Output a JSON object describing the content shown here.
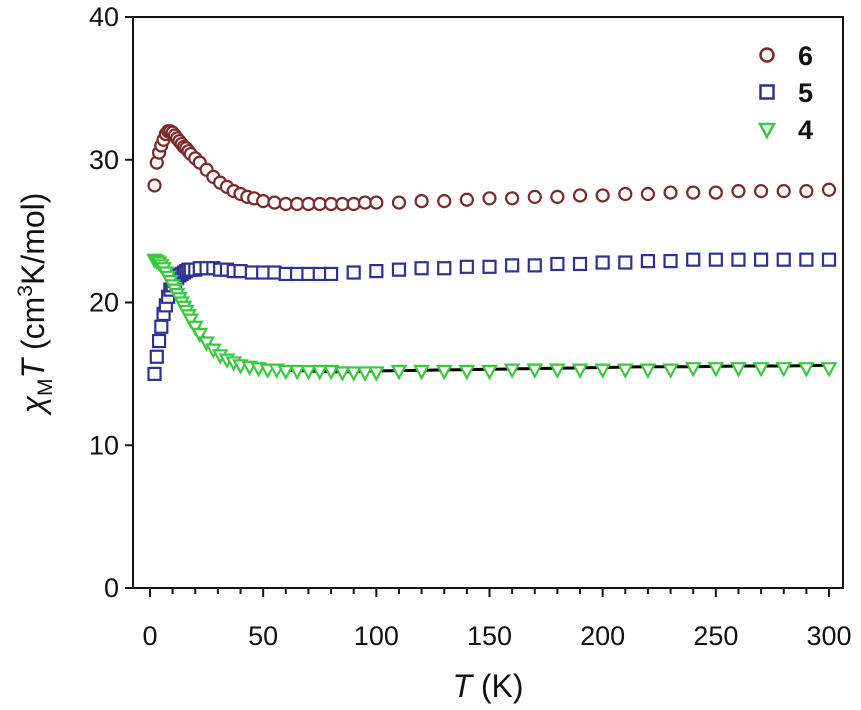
{
  "chart_data": {
    "type": "scatter",
    "xlabel": "T (K)",
    "ylabel": "χMT (cm3K/mol)",
    "xlabel_parts": {
      "var": "T",
      "unit": "(K)"
    },
    "ylabel_parts": {
      "chi": "χ",
      "sub": "M",
      "var": "T",
      "unit_pre": "(cm",
      "sup": "3",
      "unit_post": "K/mol)"
    },
    "xlim": [
      0,
      300
    ],
    "ylim": [
      0,
      40
    ],
    "xticks": [
      0,
      50,
      100,
      150,
      200,
      250,
      300
    ],
    "yticks": [
      0,
      10,
      20,
      30,
      40
    ],
    "grid": false,
    "legend_position": "top-right",
    "series": [
      {
        "name": "6",
        "marker": "circle",
        "color": "#7a2a2a",
        "x": [
          2,
          3,
          4,
          5,
          6,
          7,
          8,
          9,
          10,
          11,
          12,
          13,
          14,
          15,
          16,
          17,
          18,
          20,
          22,
          25,
          28,
          31,
          34,
          37,
          40,
          43,
          46,
          50,
          55,
          60,
          65,
          70,
          75,
          80,
          85,
          90,
          95,
          100,
          110,
          120,
          130,
          140,
          150,
          160,
          170,
          180,
          190,
          200,
          210,
          220,
          230,
          240,
          250,
          260,
          270,
          280,
          290,
          300
        ],
        "y": [
          28.2,
          29.8,
          30.5,
          31.0,
          31.4,
          31.8,
          32.0,
          32.0,
          31.9,
          31.7,
          31.5,
          31.3,
          31.1,
          30.9,
          30.8,
          30.6,
          30.4,
          30.1,
          29.8,
          29.3,
          28.8,
          28.4,
          28.1,
          27.8,
          27.6,
          27.4,
          27.3,
          27.1,
          27.0,
          26.9,
          26.9,
          26.9,
          26.9,
          26.9,
          26.9,
          26.9,
          27.0,
          27.0,
          27.0,
          27.1,
          27.1,
          27.2,
          27.3,
          27.3,
          27.4,
          27.4,
          27.5,
          27.5,
          27.6,
          27.6,
          27.7,
          27.7,
          27.7,
          27.8,
          27.8,
          27.8,
          27.8,
          27.9
        ]
      },
      {
        "name": "5",
        "marker": "square",
        "color": "#2e3192",
        "x": [
          2,
          3,
          4,
          5,
          6,
          7,
          8,
          9,
          10,
          11,
          12,
          13,
          14,
          15,
          16,
          17,
          18,
          20,
          22,
          25,
          28,
          31,
          34,
          37,
          40,
          45,
          50,
          55,
          60,
          65,
          70,
          75,
          80,
          90,
          100,
          110,
          120,
          130,
          140,
          150,
          160,
          170,
          180,
          190,
          200,
          210,
          220,
          230,
          240,
          250,
          260,
          270,
          280,
          290,
          300
        ],
        "y": [
          15.0,
          16.2,
          17.3,
          18.3,
          19.2,
          19.8,
          20.4,
          20.9,
          21.2,
          21.5,
          21.7,
          21.9,
          22.0,
          22.1,
          22.2,
          22.3,
          22.3,
          22.3,
          22.4,
          22.4,
          22.4,
          22.3,
          22.3,
          22.2,
          22.2,
          22.1,
          22.1,
          22.1,
          22.0,
          22.0,
          22.0,
          22.0,
          22.0,
          22.1,
          22.2,
          22.3,
          22.4,
          22.4,
          22.5,
          22.5,
          22.6,
          22.6,
          22.7,
          22.7,
          22.8,
          22.8,
          22.9,
          22.9,
          23.0,
          23.0,
          23.0,
          23.0,
          23.0,
          23.0,
          23.0
        ]
      },
      {
        "name": "4",
        "marker": "triangle-down",
        "color": "#39c93e",
        "x": [
          2,
          3,
          4,
          5,
          6,
          7,
          8,
          9,
          10,
          11,
          12,
          13,
          14,
          15,
          16,
          17,
          18,
          20,
          22,
          25,
          28,
          31,
          34,
          37,
          40,
          44,
          48,
          52,
          56,
          60,
          65,
          70,
          75,
          80,
          85,
          90,
          95,
          100,
          110,
          120,
          130,
          140,
          150,
          160,
          170,
          180,
          190,
          200,
          210,
          220,
          230,
          240,
          250,
          260,
          270,
          280,
          290,
          300
        ],
        "y": [
          23.0,
          22.9,
          22.8,
          22.6,
          22.4,
          22.1,
          21.8,
          21.5,
          21.2,
          20.9,
          20.6,
          20.3,
          20.0,
          19.7,
          19.4,
          19.1,
          18.8,
          18.3,
          17.8,
          17.2,
          16.7,
          16.3,
          16.0,
          15.8,
          15.6,
          15.5,
          15.4,
          15.3,
          15.3,
          15.2,
          15.2,
          15.2,
          15.2,
          15.2,
          15.1,
          15.1,
          15.1,
          15.1,
          15.2,
          15.2,
          15.2,
          15.2,
          15.2,
          15.3,
          15.3,
          15.3,
          15.3,
          15.3,
          15.3,
          15.3,
          15.3,
          15.4,
          15.4,
          15.4,
          15.4,
          15.4,
          15.4,
          15.4
        ]
      }
    ],
    "fit_line": {
      "color": "#000000",
      "x": [
        20,
        25,
        30,
        35,
        40,
        50,
        60,
        70,
        80,
        90,
        100,
        120,
        140,
        160,
        180,
        200,
        220,
        240,
        260,
        280,
        300
      ],
      "y": [
        18.3,
        17.3,
        16.6,
        16.1,
        15.8,
        15.4,
        15.25,
        15.2,
        15.15,
        15.15,
        15.2,
        15.25,
        15.3,
        15.35,
        15.4,
        15.45,
        15.5,
        15.5,
        15.55,
        15.55,
        15.6
      ]
    }
  }
}
